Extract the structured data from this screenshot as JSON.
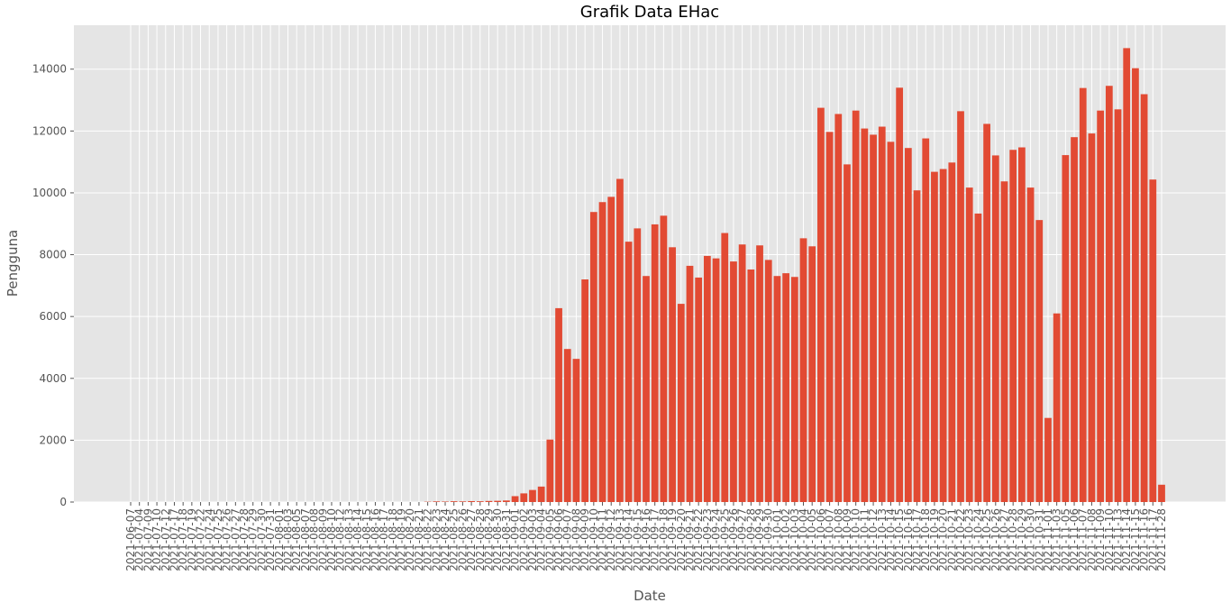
{
  "chart_data": {
    "type": "bar",
    "title": "Grafik Data EHac",
    "x_label": "Date",
    "y_label": "Pengguna",
    "categories": [
      "2021-06-07",
      "2021-07-04",
      "2021-07-09",
      "2021-07-10",
      "2021-07-12",
      "2021-07-17",
      "2021-07-18",
      "2021-07-19",
      "2021-07-22",
      "2021-07-24",
      "2021-07-25",
      "2021-07-26",
      "2021-07-27",
      "2021-07-28",
      "2021-07-29",
      "2021-07-30",
      "2021-07-31",
      "2021-08-01",
      "2021-08-03",
      "2021-08-05",
      "2021-08-07",
      "2021-08-08",
      "2021-08-09",
      "2021-08-10",
      "2021-08-12",
      "2021-08-13",
      "2021-08-14",
      "2021-08-15",
      "2021-08-16",
      "2021-08-17",
      "2021-08-18",
      "2021-08-19",
      "2021-08-20",
      "2021-08-21",
      "2021-08-22",
      "2021-08-23",
      "2021-08-24",
      "2021-08-25",
      "2021-08-26",
      "2021-08-27",
      "2021-08-28",
      "2021-08-29",
      "2021-08-30",
      "2021-08-31",
      "2021-09-01",
      "2021-09-02",
      "2021-09-03",
      "2021-09-04",
      "2021-09-05",
      "2021-09-06",
      "2021-09-07",
      "2021-09-08",
      "2021-09-09",
      "2021-09-10",
      "2021-09-11",
      "2021-09-12",
      "2021-09-13",
      "2021-09-14",
      "2021-09-15",
      "2021-09-16",
      "2021-09-17",
      "2021-09-18",
      "2021-09-19",
      "2021-09-20",
      "2021-09-21",
      "2021-09-22",
      "2021-09-23",
      "2021-09-24",
      "2021-09-25",
      "2021-09-26",
      "2021-09-27",
      "2021-09-28",
      "2021-09-29",
      "2021-09-30",
      "2021-10-01",
      "2021-10-02",
      "2021-10-03",
      "2021-10-04",
      "2021-10-05",
      "2021-10-06",
      "2021-10-07",
      "2021-10-08",
      "2021-10-09",
      "2021-10-10",
      "2021-10-11",
      "2021-10-12",
      "2021-10-13",
      "2021-10-14",
      "2021-10-15",
      "2021-10-16",
      "2021-10-17",
      "2021-10-18",
      "2021-10-19",
      "2021-10-20",
      "2021-10-21",
      "2021-10-22",
      "2021-10-23",
      "2021-10-24",
      "2021-10-25",
      "2021-10-26",
      "2021-10-27",
      "2021-10-28",
      "2021-10-29",
      "2021-10-30",
      "2021-10-31",
      "2021-11-01",
      "2021-11-03",
      "2021-11-05",
      "2021-11-06",
      "2021-11-07",
      "2021-11-08",
      "2021-11-09",
      "2021-11-10",
      "2021-11-13",
      "2021-11-14",
      "2021-11-15",
      "2021-11-16",
      "2021-11-17",
      "2021-11-28"
    ],
    "values": [
      0,
      0,
      0,
      0,
      0,
      0,
      0,
      0,
      0,
      0,
      0,
      0,
      0,
      0,
      0,
      0,
      0,
      0,
      0,
      0,
      0,
      0,
      0,
      0,
      0,
      0,
      0,
      0,
      0,
      0,
      0,
      0,
      0,
      0,
      10,
      20,
      15,
      25,
      20,
      30,
      25,
      35,
      40,
      50,
      190,
      280,
      390,
      500,
      2020,
      6270,
      4950,
      4630,
      7200,
      9380,
      9700,
      9870,
      10450,
      8420,
      8850,
      7310,
      8980,
      9260,
      8240,
      6410,
      7640,
      7260,
      7960,
      7880,
      8700,
      7780,
      8330,
      7520,
      8300,
      7830,
      7310,
      7400,
      7280,
      8530,
      8270,
      12750,
      11970,
      12550,
      10920,
      12660,
      12080,
      11880,
      12140,
      11650,
      13400,
      11450,
      10080,
      11760,
      10680,
      10770,
      10980,
      12640,
      10170,
      9330,
      12230,
      11210,
      10370,
      11390,
      11470,
      10170,
      9120,
      2720,
      6100,
      11220,
      11800,
      13390,
      11920,
      12660,
      13460,
      12700,
      14680,
      14030,
      13190,
      10430,
      560
    ],
    "color": "#e24a33",
    "ylim": [
      0,
      15420
    ],
    "yticks": [
      0,
      2000,
      4000,
      6000,
      8000,
      10000,
      12000,
      14000
    ],
    "grid": true
  }
}
